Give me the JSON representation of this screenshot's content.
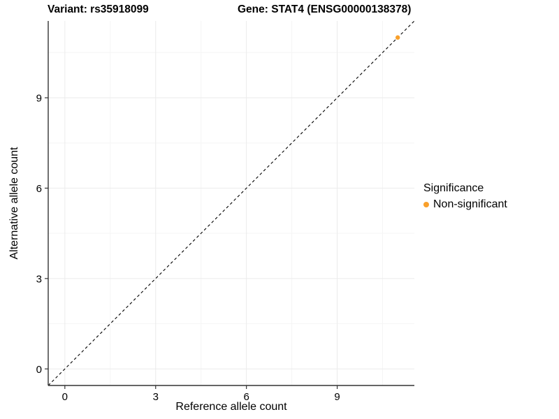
{
  "chart_data": {
    "type": "scatter",
    "title_variant": "Variant: rs35918099",
    "title_gene": "Gene: STAT4 (ENSG00000138378)",
    "xlabel": "Reference allele count",
    "ylabel": "Alternative allele count",
    "xlim": [
      -0.55,
      11.55
    ],
    "ylim": [
      -0.55,
      11.55
    ],
    "xticks": [
      0,
      3,
      6,
      9
    ],
    "yticks": [
      0,
      3,
      6,
      9
    ],
    "xticks_minor": [
      1.5,
      4.5,
      7.5,
      10.5
    ],
    "yticks_minor": [
      1.5,
      4.5,
      7.5,
      10.5
    ],
    "grid": true,
    "identity_line": {
      "equation": "y = x",
      "style": "dashed",
      "color": "#000000"
    },
    "series": [
      {
        "name": "Non-significant",
        "color": "#F9A02B",
        "points": [
          {
            "x": 11,
            "y": 11
          }
        ]
      }
    ],
    "legend": {
      "position": "right",
      "title": "Significance",
      "items": [
        {
          "label": "Non-significant",
          "color": "#F9A02B"
        }
      ]
    },
    "colors": {
      "grid_major": "#EBEBEB",
      "grid_minor": "#F5F5F5",
      "axis": "#333333",
      "tick_text": "#000000"
    }
  }
}
